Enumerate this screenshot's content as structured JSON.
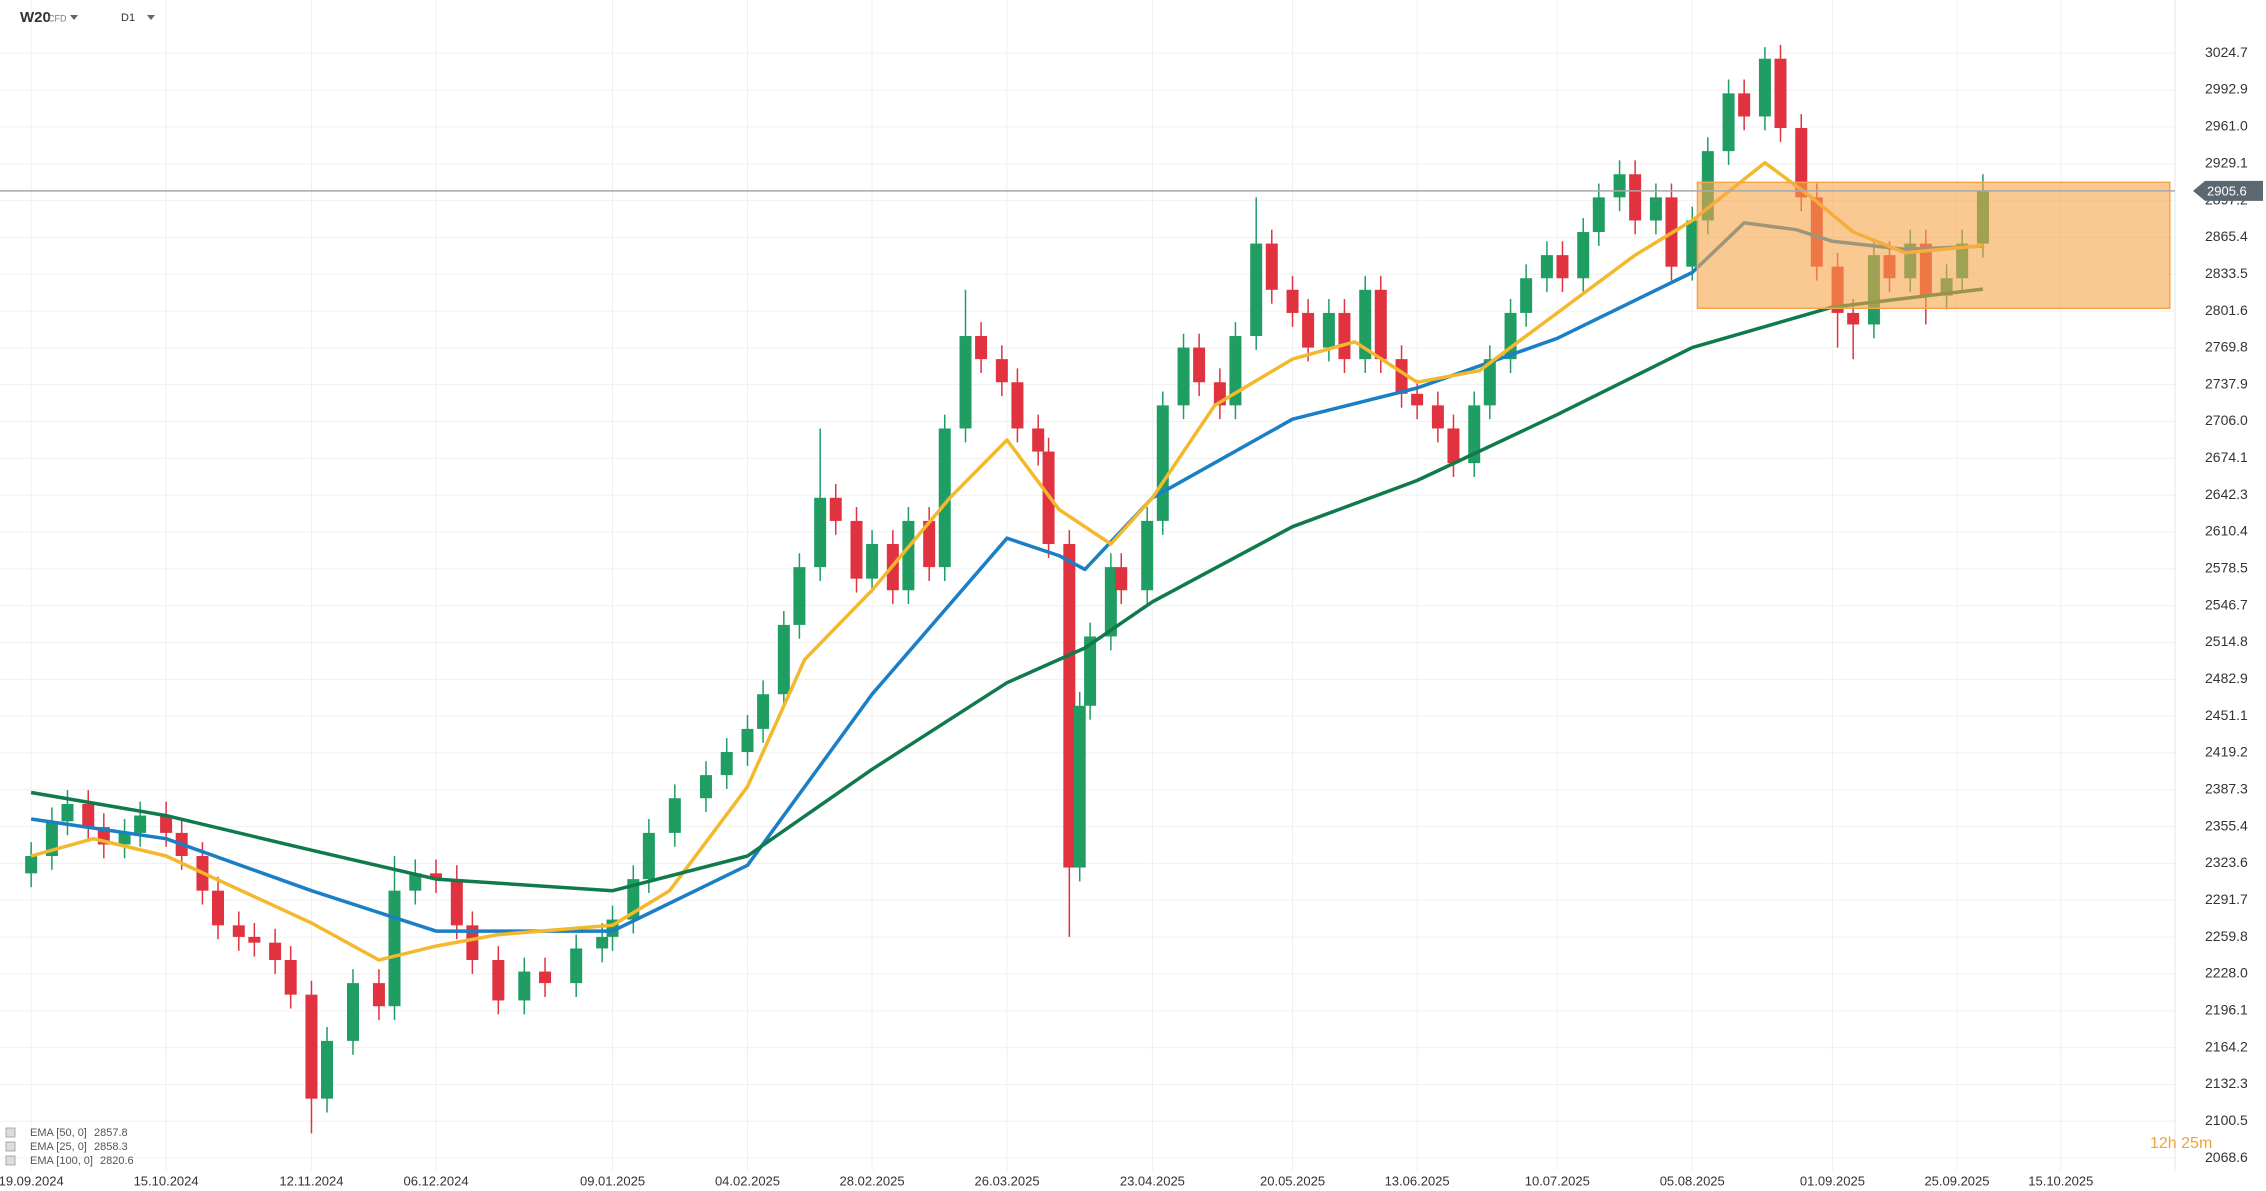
{
  "chart_data": {
    "type": "candlestick",
    "symbol": "W20",
    "instrument_type": "CFD",
    "timeframe": "D1",
    "countdown": "12h 25m",
    "up_color": "#1f9d63",
    "down_color": "#e0323f",
    "x": [
      "19.09.2024",
      "23.09.2024",
      "26.09.2024",
      "30.09.2024",
      "03.10.2024",
      "07.10.2024",
      "10.10.2024",
      "15.10.2024",
      "18.10.2024",
      "22.10.2024",
      "25.10.2024",
      "29.10.2024",
      "01.11.2024",
      "05.11.2024",
      "08.11.2024",
      "12.11.2024",
      "15.11.2024",
      "20.11.2024",
      "25.11.2024",
      "28.11.2024",
      "02.12.2024",
      "06.12.2024",
      "10.12.2024",
      "13.12.2024",
      "18.12.2024",
      "23.12.2024",
      "27.12.2024",
      "02.01.2025",
      "07.01.2025",
      "09.01.2025",
      "13.01.2025",
      "16.01.2025",
      "21.01.2025",
      "27.01.2025",
      "31.01.2025",
      "04.02.2025",
      "07.02.2025",
      "11.02.2025",
      "14.02.2025",
      "18.02.2025",
      "21.02.2025",
      "25.02.2025",
      "28.02.2025",
      "04.03.2025",
      "07.03.2025",
      "11.03.2025",
      "14.03.2025",
      "18.03.2025",
      "21.03.2025",
      "25.03.2025",
      "28.03.2025",
      "01.04.2025",
      "03.04.2025",
      "07.04.2025",
      "09.04.2025",
      "11.04.2025",
      "15.04.2025",
      "17.04.2025",
      "22.04.2025",
      "25.04.2025",
      "29.04.2025",
      "02.05.2025",
      "06.05.2025",
      "09.05.2025",
      "13.05.2025",
      "16.05.2025",
      "20.05.2025",
      "23.05.2025",
      "27.05.2025",
      "30.05.2025",
      "03.06.2025",
      "06.06.2025",
      "10.06.2025",
      "13.06.2025",
      "17.06.2025",
      "20.06.2025",
      "24.06.2025",
      "27.06.2025",
      "01.07.2025",
      "04.07.2025",
      "08.07.2025",
      "11.07.2025",
      "15.07.2025",
      "18.07.2025",
      "22.07.2025",
      "25.07.2025",
      "29.07.2025",
      "01.08.2025",
      "05.08.2025",
      "08.08.2025",
      "12.08.2025",
      "15.08.2025",
      "19.08.2025",
      "22.08.2025",
      "26.08.2025",
      "29.08.2025",
      "02.09.2025",
      "05.09.2025",
      "09.09.2025",
      "12.09.2025",
      "16.09.2025",
      "19.09.2025",
      "23.09.2025",
      "26.09.2025",
      "30.09.2025"
    ],
    "open": [
      2315,
      2330,
      2360,
      2375,
      2355,
      2340,
      2350,
      2365,
      2350,
      2330,
      2300,
      2270,
      2260,
      2255,
      2240,
      2210,
      2120,
      2170,
      2220,
      2200,
      2300,
      2315,
      2310,
      2270,
      2240,
      2205,
      2230,
      2220,
      2250,
      2260,
      2275,
      2310,
      2350,
      2380,
      2400,
      2420,
      2440,
      2470,
      2530,
      2580,
      2640,
      2620,
      2570,
      2600,
      2560,
      2620,
      2580,
      2700,
      2780,
      2760,
      2740,
      2700,
      2680,
      2600,
      2320,
      2460,
      2520,
      2580,
      2560,
      2620,
      2720,
      2770,
      2740,
      2720,
      2780,
      2860,
      2820,
      2800,
      2770,
      2800,
      2760,
      2820,
      2760,
      2730,
      2720,
      2700,
      2670,
      2720,
      2760,
      2800,
      2830,
      2850,
      2830,
      2870,
      2900,
      2920,
      2880,
      2900,
      2840,
      2880,
      2940,
      2990,
      2970,
      3020,
      2960,
      2900,
      2840,
      2800,
      2790,
      2850,
      2830,
      2860,
      2815,
      2830,
      2860
    ],
    "high": [
      2342,
      2372,
      2387,
      2387,
      2367,
      2362,
      2377,
      2377,
      2362,
      2342,
      2312,
      2282,
      2272,
      2267,
      2252,
      2222,
      2182,
      2232,
      2232,
      2330,
      2327,
      2327,
      2322,
      2282,
      2252,
      2242,
      2242,
      2262,
      2272,
      2287,
      2322,
      2362,
      2392,
      2412,
      2432,
      2452,
      2482,
      2542,
      2592,
      2700,
      2652,
      2632,
      2612,
      2612,
      2632,
      2632,
      2712,
      2820,
      2792,
      2772,
      2752,
      2712,
      2692,
      2612,
      2472,
      2532,
      2592,
      2592,
      2632,
      2732,
      2782,
      2782,
      2752,
      2792,
      2900,
      2872,
      2832,
      2812,
      2812,
      2812,
      2832,
      2832,
      2772,
      2742,
      2732,
      2712,
      2732,
      2772,
      2812,
      2842,
      2862,
      2862,
      2882,
      2912,
      2932,
      2932,
      2912,
      2912,
      2892,
      2952,
      3002,
      3002,
      3030,
      3032,
      2972,
      2912,
      2852,
      2812,
      2862,
      2862,
      2872,
      2872,
      2842,
      2872,
      2920
    ],
    "low": [
      2303,
      2318,
      2348,
      2343,
      2328,
      2328,
      2338,
      2338,
      2318,
      2288,
      2258,
      2248,
      2243,
      2228,
      2198,
      2090,
      2108,
      2158,
      2188,
      2188,
      2288,
      2298,
      2258,
      2228,
      2193,
      2193,
      2208,
      2208,
      2238,
      2248,
      2263,
      2298,
      2338,
      2368,
      2388,
      2408,
      2428,
      2458,
      2518,
      2568,
      2608,
      2558,
      2558,
      2548,
      2548,
      2568,
      2568,
      2688,
      2748,
      2728,
      2688,
      2668,
      2588,
      2260,
      2308,
      2448,
      2508,
      2548,
      2548,
      2608,
      2708,
      2728,
      2708,
      2708,
      2768,
      2808,
      2788,
      2758,
      2758,
      2748,
      2748,
      2748,
      2718,
      2708,
      2688,
      2658,
      2658,
      2708,
      2748,
      2788,
      2818,
      2818,
      2818,
      2858,
      2888,
      2868,
      2868,
      2828,
      2828,
      2868,
      2928,
      2958,
      2958,
      2948,
      2888,
      2828,
      2770,
      2760,
      2778,
      2818,
      2818,
      2790,
      2803,
      2818,
      2848
    ],
    "close": [
      2330,
      2360,
      2375,
      2355,
      2340,
      2350,
      2365,
      2350,
      2330,
      2300,
      2270,
      2260,
      2255,
      2240,
      2210,
      2120,
      2170,
      2220,
      2200,
      2300,
      2315,
      2310,
      2270,
      2240,
      2205,
      2230,
      2220,
      2250,
      2260,
      2275,
      2310,
      2350,
      2380,
      2400,
      2420,
      2440,
      2470,
      2530,
      2580,
      2640,
      2620,
      2570,
      2600,
      2560,
      2620,
      2580,
      2700,
      2780,
      2760,
      2740,
      2700,
      2680,
      2600,
      2320,
      2460,
      2520,
      2580,
      2560,
      2620,
      2720,
      2770,
      2740,
      2720,
      2780,
      2860,
      2820,
      2800,
      2770,
      2800,
      2760,
      2820,
      2760,
      2730,
      2720,
      2700,
      2670,
      2720,
      2760,
      2800,
      2830,
      2850,
      2830,
      2870,
      2900,
      2920,
      2880,
      2900,
      2840,
      2880,
      2940,
      2990,
      2970,
      3020,
      2960,
      2900,
      2840,
      2800,
      2790,
      2850,
      2830,
      2860,
      2815,
      2830,
      2860,
      2905.6
    ],
    "series": [
      {
        "name": "EMA [50, 0]",
        "color": "#1a7fc4",
        "x": [
          "19.09.2024",
          "15.10.2024",
          "12.11.2024",
          "06.12.2024",
          "09.01.2025",
          "04.02.2025",
          "28.02.2025",
          "26.03.2025",
          "05.04.2025",
          "10.04.2025",
          "23.04.2025",
          "20.05.2025",
          "13.06.2025",
          "10.07.2025",
          "05.08.2025",
          "15.08.2025",
          "25.08.2025",
          "01.09.2025",
          "15.09.2025",
          "30.09.2025"
        ],
        "values": [
          2362,
          2345,
          2300,
          2265,
          2265,
          2322,
          2470,
          2605,
          2590,
          2578,
          2640,
          2708,
          2735,
          2778,
          2835,
          2878,
          2872,
          2862,
          2855,
          2857.8
        ]
      },
      {
        "name": "EMA [25, 0]",
        "color": "#f4b82c",
        "x": [
          "19.09.2024",
          "01.10.2024",
          "15.10.2024",
          "12.11.2024",
          "25.11.2024",
          "06.12.2024",
          "18.12.2024",
          "09.01.2025",
          "20.01.2025",
          "04.02.2025",
          "15.02.2025",
          "28.02.2025",
          "15.03.2025",
          "26.03.2025",
          "05.04.2025",
          "15.04.2025",
          "23.04.2025",
          "05.05.2025",
          "20.05.2025",
          "01.06.2025",
          "13.06.2025",
          "25.06.2025",
          "10.07.2025",
          "25.07.2025",
          "05.08.2025",
          "19.08.2025",
          "28.08.2025",
          "05.09.2025",
          "15.09.2025",
          "30.09.2025"
        ],
        "values": [
          2330,
          2345,
          2330,
          2272,
          2240,
          2252,
          2262,
          2270,
          2300,
          2390,
          2500,
          2560,
          2640,
          2690,
          2630,
          2600,
          2640,
          2720,
          2760,
          2775,
          2740,
          2750,
          2800,
          2850,
          2880,
          2930,
          2900,
          2870,
          2852,
          2858.3
        ]
      },
      {
        "name": "EMA [100, 0]",
        "color": "#0f7a4c",
        "x": [
          "19.09.2024",
          "15.10.2024",
          "12.11.2024",
          "06.12.2024",
          "09.01.2025",
          "04.02.2025",
          "28.02.2025",
          "26.03.2025",
          "10.04.2025",
          "23.04.2025",
          "20.05.2025",
          "13.06.2025",
          "10.07.2025",
          "05.08.2025",
          "01.09.2025",
          "30.09.2025"
        ],
        "values": [
          2385,
          2365,
          2335,
          2310,
          2300,
          2330,
          2405,
          2480,
          2510,
          2550,
          2615,
          2655,
          2712,
          2770,
          2805,
          2820.6
        ]
      }
    ],
    "zone": {
      "x": [
        "06.08.2025",
        "05.11.2025"
      ],
      "y": [
        2804,
        2913
      ],
      "color": "#f7a54a"
    },
    "xlim": [
      "13.09.2024",
      "06.11.2025"
    ],
    "xticks": [
      "19.09.2024",
      "15.10.2024",
      "12.11.2024",
      "06.12.2024",
      "09.01.2025",
      "04.02.2025",
      "28.02.2025",
      "26.03.2025",
      "23.04.2025",
      "20.05.2025",
      "13.06.2025",
      "10.07.2025",
      "05.08.2025",
      "01.09.2025",
      "25.09.2025",
      "15.10.2025"
    ],
    "ylim": [
      2057.4,
      3070.8
    ],
    "yticks": [
      3024.7,
      2992.9,
      {
        "value": 2961.0,
        "label": "2961.0"
      },
      2929.1,
      2897.2,
      2865.4,
      2833.5,
      2801.6,
      2769.8,
      2737.9,
      {
        "value": 2706.0,
        "label": "2706.0"
      },
      2674.1,
      2642.3,
      2610.4,
      2578.5,
      2546.7,
      2514.8,
      2482.9,
      2451.1,
      2419.2,
      2387.3,
      2355.4,
      2323.6,
      2291.7,
      2259.8,
      {
        "value": 2228.0,
        "label": "2228.0"
      },
      2196.1,
      2164.2,
      2132.3,
      2100.5,
      2068.6
    ],
    "grid": true
  }
}
